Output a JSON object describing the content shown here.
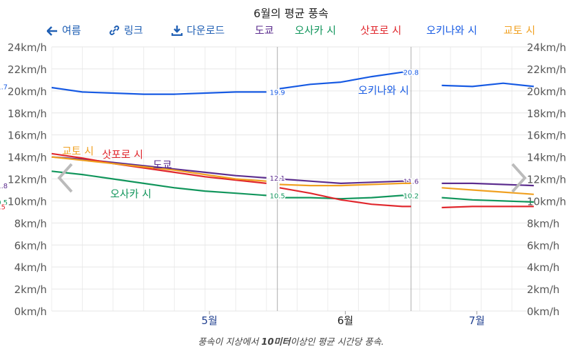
{
  "title": "6월의 평균 풍속",
  "toolbar": {
    "back_label": "여름",
    "link_label": "링크",
    "download_label": "다운로드"
  },
  "legend": [
    {
      "name": "도쿄",
      "color": "#5b2c8e"
    },
    {
      "name": "오사카 시",
      "color": "#10955b"
    },
    {
      "name": "삿포로 시",
      "color": "#e0262c"
    },
    {
      "name": "오키나와 시",
      "color": "#1559e3"
    },
    {
      "name": "교토 시",
      "color": "#f0a020"
    }
  ],
  "caption": {
    "pre": "풍속이 지상에서 ",
    "bold": "10미터",
    "post": "이상인 평균 시간당 풍속."
  },
  "chart_data": {
    "type": "line",
    "title": "6월의 평균 풍속",
    "y_unit": "km/h",
    "ylim": [
      0,
      24
    ],
    "y_ticks": [
      "0km/h",
      "2km/h",
      "4km/h",
      "6km/h",
      "8km/h",
      "10km/h",
      "12km/h",
      "14km/h",
      "16km/h",
      "18km/h",
      "20km/h",
      "22km/h",
      "24km/h"
    ],
    "x_ticks": [
      "5월",
      "6월",
      "7월"
    ],
    "xlim": [
      "2024-04-10",
      "2024-07-29"
    ],
    "x_tick_dates": [
      "2024-05-16",
      "2024-06-16",
      "2024-07-16"
    ],
    "grid": true,
    "legend_position": "top",
    "x": [
      "2024-04-10",
      "2024-04-17",
      "2024-04-24",
      "2024-05-01",
      "2024-05-08",
      "2024-05-15",
      "2024-05-22",
      "2024-05-29",
      "2024-06-01",
      "2024-06-08",
      "2024-06-15",
      "2024-06-22",
      "2024-06-29",
      "2024-07-01",
      "2024-07-08",
      "2024-07-15",
      "2024-07-22",
      "2024-07-29"
    ],
    "series": [
      {
        "name": "도쿄",
        "color": "#5b2c8e",
        "values": [
          14.0,
          13.8,
          13.5,
          13.2,
          12.9,
          12.6,
          12.3,
          12.1,
          12.0,
          11.8,
          11.6,
          11.7,
          11.8,
          11.8,
          11.6,
          11.6,
          11.5,
          11.4
        ],
        "period_labels": [
          "",
          "12.1",
          "11.6",
          "11.8"
        ]
      },
      {
        "name": "오사카 시",
        "color": "#10955b",
        "values": [
          12.7,
          12.4,
          12.0,
          11.6,
          11.2,
          10.9,
          10.7,
          10.5,
          10.3,
          10.3,
          10.2,
          10.3,
          10.5,
          10.5,
          10.3,
          10.1,
          10.0,
          9.9
        ],
        "period_labels": [
          "",
          "10.5",
          "10.2",
          "10.5"
        ]
      },
      {
        "name": "삿포로 시",
        "color": "#e0262c",
        "values": [
          14.3,
          13.9,
          13.4,
          13.0,
          12.6,
          12.2,
          11.9,
          11.6,
          11.2,
          10.7,
          10.1,
          9.7,
          9.5,
          9.5,
          9.4,
          9.5,
          9.5,
          9.5
        ],
        "period_labels": [
          "",
          "",
          "",
          "9.5"
        ]
      },
      {
        "name": "오키나와 시",
        "color": "#1559e3",
        "values": [
          20.3,
          19.9,
          19.8,
          19.7,
          19.7,
          19.8,
          19.9,
          19.9,
          20.2,
          20.6,
          20.8,
          21.3,
          21.7,
          21.7,
          20.5,
          20.4,
          20.7,
          20.4
        ],
        "period_labels": [
          "",
          "19.9",
          "20.8",
          "21.7"
        ]
      },
      {
        "name": "교토 시",
        "color": "#f0a020",
        "values": [
          14.0,
          13.7,
          13.4,
          13.1,
          12.8,
          12.4,
          12.0,
          11.8,
          11.5,
          11.4,
          11.4,
          11.5,
          11.6,
          11.6,
          11.2,
          11.0,
          10.8,
          10.6
        ],
        "period_labels": [
          "",
          "",
          "",
          ""
        ]
      }
    ],
    "annotations": [
      {
        "text": "교토 시",
        "series": "교토 시"
      },
      {
        "text": "삿포로 시",
        "series": "삿포로 시"
      },
      {
        "text": "도쿄",
        "series": "도쿄"
      },
      {
        "text": "오사카 시",
        "series": "오사카 시"
      },
      {
        "text": "오키나와 시",
        "series": "오키나와 시"
      }
    ]
  }
}
